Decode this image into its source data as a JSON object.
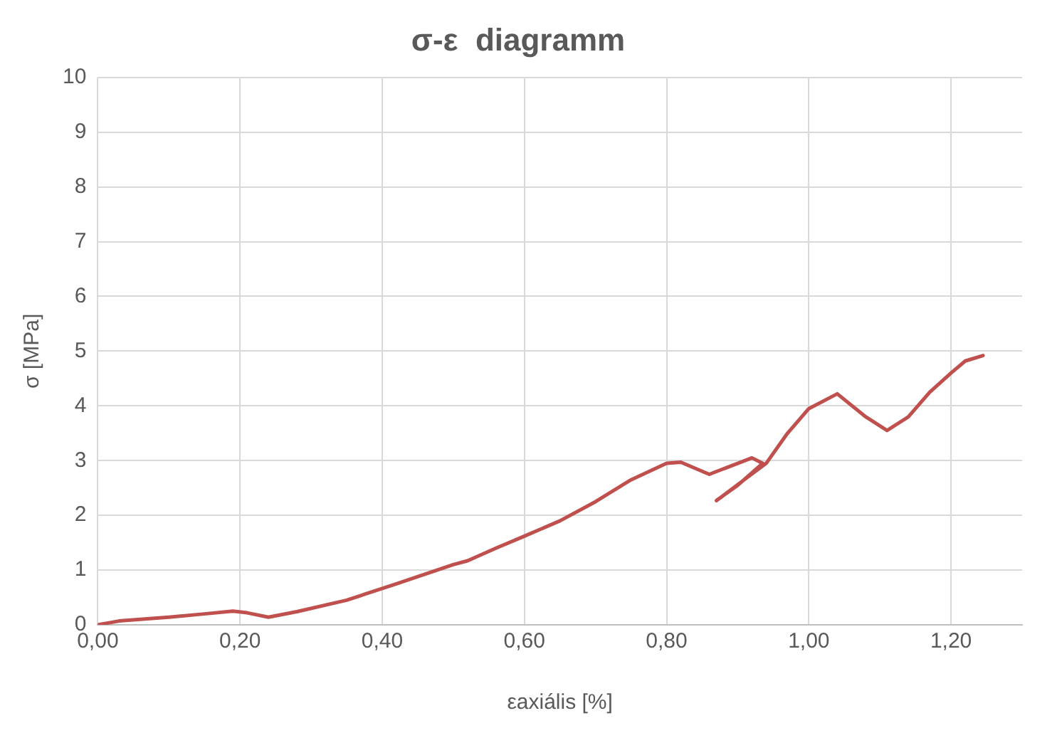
{
  "chart_data": {
    "type": "line",
    "title": "σ-ε  diagramm",
    "xlabel": "εaxiális [%]",
    "ylabel": "σ [MPa]",
    "series": [
      {
        "color": "#c0504d",
        "x": [
          0,
          0.03,
          0.1,
          0.15,
          0.19,
          0.21,
          0.24,
          0.28,
          0.35,
          0.42,
          0.5,
          0.52,
          0.56,
          0.6,
          0.65,
          0.7,
          0.75,
          0.8,
          0.82,
          0.86,
          0.9,
          0.92,
          0.935,
          0.9,
          0.87,
          0.94,
          0.97,
          1.0,
          1.04,
          1.08,
          1.11,
          1.14,
          1.17,
          1.2,
          1.22,
          1.245
        ],
        "values": [
          0,
          0.07,
          0.14,
          0.2,
          0.25,
          0.22,
          0.14,
          0.24,
          0.45,
          0.75,
          1.1,
          1.17,
          1.4,
          1.62,
          1.9,
          2.25,
          2.65,
          2.95,
          2.97,
          2.75,
          2.95,
          3.05,
          2.95,
          2.55,
          2.27,
          2.95,
          3.5,
          3.95,
          4.22,
          3.8,
          3.55,
          3.8,
          4.25,
          4.6,
          4.82,
          4.92
        ]
      }
    ],
    "xlim": [
      0,
      1.3
    ],
    "xticks": [
      {
        "value": 0,
        "label": "0,00"
      },
      {
        "value": 0.2,
        "label": "0,20"
      },
      {
        "value": 0.4,
        "label": "0,40"
      },
      {
        "value": 0.6,
        "label": "0,60"
      },
      {
        "value": 0.8,
        "label": "0,80"
      },
      {
        "value": 1,
        "label": "1,00"
      },
      {
        "value": 1.2,
        "label": "1,20"
      }
    ],
    "ylim": [
      0,
      10
    ],
    "yticks": [
      0,
      1,
      2,
      3,
      4,
      5,
      6,
      7,
      8,
      9,
      10
    ],
    "grid": true,
    "legend": false,
    "marker": "none",
    "line_style": "solid"
  }
}
